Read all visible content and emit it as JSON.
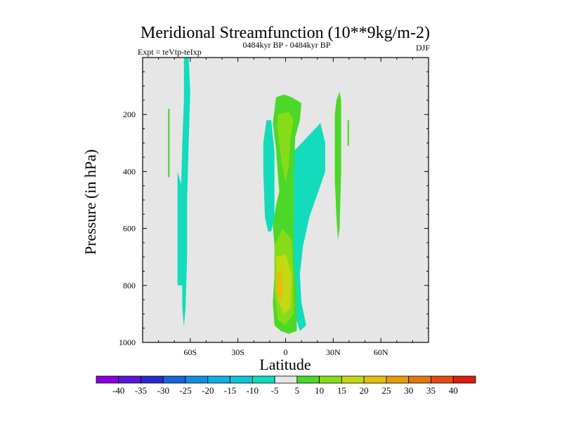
{
  "chart_data": {
    "type": "contour",
    "title": "Meridional Streamfunction (10**9kg/m-2)",
    "subtitle_left": "Expt = teVtp-teIxp",
    "subtitle_center": "0484kyr BP - 0484kyr BP",
    "subtitle_right": "DJF",
    "xlabel": "Latitude",
    "ylabel": "Pressure (in hPa)",
    "xlim": [
      -90,
      90
    ],
    "ylim": [
      1000,
      0
    ],
    "x_ticks": [
      -60,
      -30,
      0,
      30,
      60
    ],
    "x_tick_labels": [
      "60S",
      "30S",
      "0",
      "30N",
      "60N"
    ],
    "y_ticks": [
      200,
      400,
      600,
      800,
      1000
    ],
    "y_tick_labels": [
      "200",
      "400",
      "600",
      "800",
      "1000"
    ],
    "colorbar": {
      "levels": [
        -40,
        -35,
        -30,
        -25,
        -20,
        -15,
        -10,
        -5,
        5,
        10,
        15,
        20,
        25,
        30,
        35,
        40
      ],
      "labels": [
        "-40",
        "-35",
        "-30",
        "-25",
        "-20",
        "-15",
        "-10",
        "-5",
        "5",
        "10",
        "15",
        "20",
        "25",
        "30",
        "35",
        "40"
      ],
      "colors": [
        "#8a00e0",
        "#5a17d8",
        "#2a2ad0",
        "#1565d9",
        "#0f8fe3",
        "#11aee8",
        "#0ec6d8",
        "#12dcbc",
        "#e6e6e6",
        "#4bd829",
        "#86dc19",
        "#c4d813",
        "#e0c00c",
        "#e39c0a",
        "#e5760c",
        "#e24c12",
        "#d9200f"
      ]
    },
    "background_color": "#e6e6e6",
    "regions": [
      {
        "name": "neg-70S-strip",
        "value": -7,
        "color": "#12dcbc",
        "points": [
          [
            -64,
            0
          ],
          [
            -61,
            0
          ],
          [
            -60,
            120
          ],
          [
            -61,
            300
          ],
          [
            -62,
            500
          ],
          [
            -62,
            700
          ],
          [
            -63,
            880
          ],
          [
            -64,
            945
          ],
          [
            -65,
            880
          ],
          [
            -65,
            820
          ],
          [
            -66,
            700
          ],
          [
            -66,
            500
          ],
          [
            -65,
            300
          ],
          [
            -64,
            150
          ]
        ]
      },
      {
        "name": "neg-65S-lower",
        "value": -7,
        "color": "#12dcbc",
        "points": [
          [
            -68,
            400
          ],
          [
            -65,
            460
          ],
          [
            -65,
            800
          ],
          [
            -68,
            800
          ]
        ]
      },
      {
        "name": "pos-75S-sliver",
        "value": 7,
        "color": "#4bd829",
        "points": [
          [
            -74,
            180
          ],
          [
            -73,
            180
          ],
          [
            -73,
            420
          ],
          [
            -74,
            420
          ]
        ]
      },
      {
        "name": "neg-15S-upper",
        "value": -7,
        "color": "#12dcbc",
        "points": [
          [
            -12,
            220
          ],
          [
            -9,
            220
          ],
          [
            -7,
            330
          ],
          [
            -7,
            560
          ],
          [
            -9,
            610
          ],
          [
            -11,
            610
          ],
          [
            -13,
            560
          ],
          [
            -14,
            400
          ],
          [
            -14,
            300
          ]
        ]
      },
      {
        "name": "neg-eq-to-25N",
        "value": -7,
        "color": "#12dcbc",
        "points": [
          [
            5,
            330
          ],
          [
            22,
            230
          ],
          [
            25,
            300
          ],
          [
            25,
            400
          ],
          [
            20,
            480
          ],
          [
            15,
            560
          ],
          [
            11,
            660
          ],
          [
            9,
            760
          ],
          [
            10,
            860
          ],
          [
            13,
            940
          ],
          [
            9,
            960
          ],
          [
            4,
            870
          ],
          [
            4,
            700
          ],
          [
            5,
            560
          ],
          [
            5,
            420
          ]
        ]
      },
      {
        "name": "pos-eq-column",
        "value": 7,
        "color": "#4bd829",
        "points": [
          [
            -6,
            140
          ],
          [
            -1,
            130
          ],
          [
            4,
            140
          ],
          [
            10,
            160
          ],
          [
            9,
            220
          ],
          [
            6,
            280
          ],
          [
            5,
            420
          ],
          [
            5,
            560
          ],
          [
            5,
            700
          ],
          [
            7,
            830
          ],
          [
            7,
            960
          ],
          [
            2,
            970
          ],
          [
            -3,
            960
          ],
          [
            -7,
            940
          ],
          [
            -8,
            860
          ],
          [
            -7,
            760
          ],
          [
            -7,
            660
          ],
          [
            -8,
            590
          ],
          [
            -6,
            520
          ],
          [
            -4,
            470
          ],
          [
            -5,
            400
          ],
          [
            -6,
            320
          ],
          [
            -8,
            230
          ]
        ]
      },
      {
        "name": "pos-eq-core-upper",
        "value": 12,
        "color": "#86dc19",
        "points": [
          [
            -5,
            200
          ],
          [
            2,
            190
          ],
          [
            5,
            220
          ],
          [
            3,
            290
          ],
          [
            2,
            380
          ],
          [
            0,
            440
          ],
          [
            -3,
            350
          ],
          [
            -5,
            260
          ]
        ]
      },
      {
        "name": "pos-eq-core-lower",
        "value": 12,
        "color": "#86dc19",
        "points": [
          [
            -7,
            660
          ],
          [
            -2,
            600
          ],
          [
            4,
            640
          ],
          [
            5,
            780
          ],
          [
            5,
            900
          ],
          [
            0,
            940
          ],
          [
            -5,
            920
          ],
          [
            -7,
            820
          ]
        ]
      },
      {
        "name": "pos-eq-core-lower-2",
        "value": 17,
        "color": "#c4d813",
        "points": [
          [
            -6,
            700
          ],
          [
            0,
            690
          ],
          [
            4,
            760
          ],
          [
            3,
            880
          ],
          [
            -1,
            900
          ],
          [
            -5,
            850
          ]
        ]
      },
      {
        "name": "pos-eq-core-lower-3",
        "value": 22,
        "color": "#e0c00c",
        "points": [
          [
            -6,
            760
          ],
          [
            -3,
            740
          ],
          [
            -1,
            820
          ],
          [
            -3,
            850
          ],
          [
            -6,
            830
          ]
        ]
      },
      {
        "name": "pos-30N-strip",
        "value": 7,
        "color": "#4bd829",
        "points": [
          [
            34,
            120
          ],
          [
            35,
            150
          ],
          [
            35,
            400
          ],
          [
            34,
            600
          ],
          [
            33,
            640
          ],
          [
            32,
            560
          ],
          [
            31,
            430
          ],
          [
            31,
            310
          ],
          [
            31,
            200
          ],
          [
            32,
            150
          ]
        ]
      },
      {
        "name": "pos-40N-sliver",
        "value": 7,
        "color": "#4bd829",
        "points": [
          [
            39,
            220
          ],
          [
            40,
            220
          ],
          [
            40,
            310
          ],
          [
            39,
            310
          ]
        ]
      }
    ]
  }
}
